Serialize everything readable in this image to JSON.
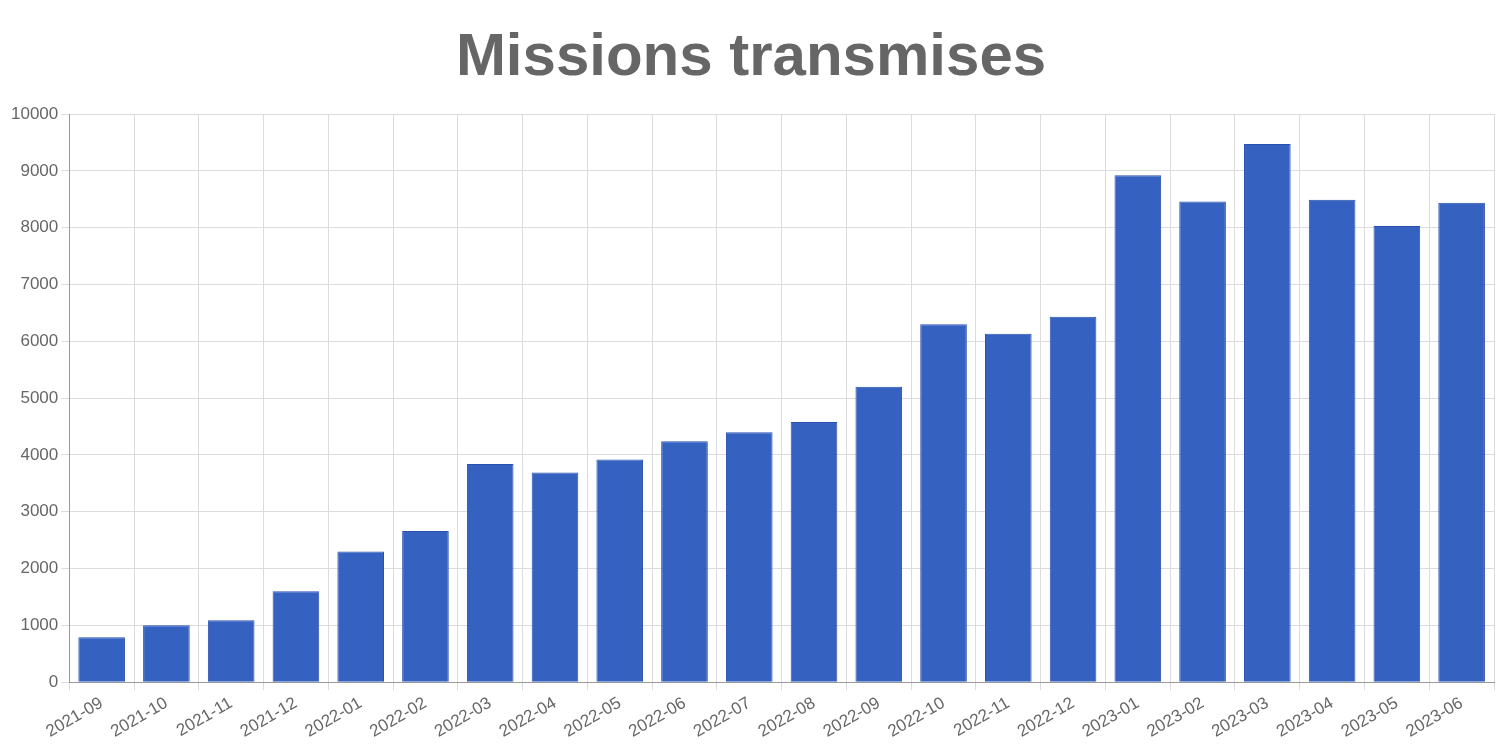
{
  "chart_data": {
    "type": "bar",
    "title": "Missions transmises",
    "categories": [
      "2021-09",
      "2021-10",
      "2021-11",
      "2021-12",
      "2022-01",
      "2022-02",
      "2022-03",
      "2022-04",
      "2022-05",
      "2022-06",
      "2022-07",
      "2022-08",
      "2022-09",
      "2022-10",
      "2022-11",
      "2022-12",
      "2023-01",
      "2023-02",
      "2023-03",
      "2023-04",
      "2023-05",
      "2023-06"
    ],
    "values": [
      790,
      1000,
      1090,
      1600,
      2300,
      2660,
      3840,
      3690,
      3920,
      4240,
      4400,
      4580,
      5200,
      6300,
      6130,
      6430,
      8920,
      8460,
      9470,
      8490,
      8030,
      8440
    ],
    "color": "#3562c0",
    "ylim": [
      0,
      10000
    ],
    "yticks": [
      0,
      1000,
      2000,
      3000,
      4000,
      5000,
      6000,
      7000,
      8000,
      9000,
      10000
    ],
    "grid": true,
    "legend": false
  }
}
